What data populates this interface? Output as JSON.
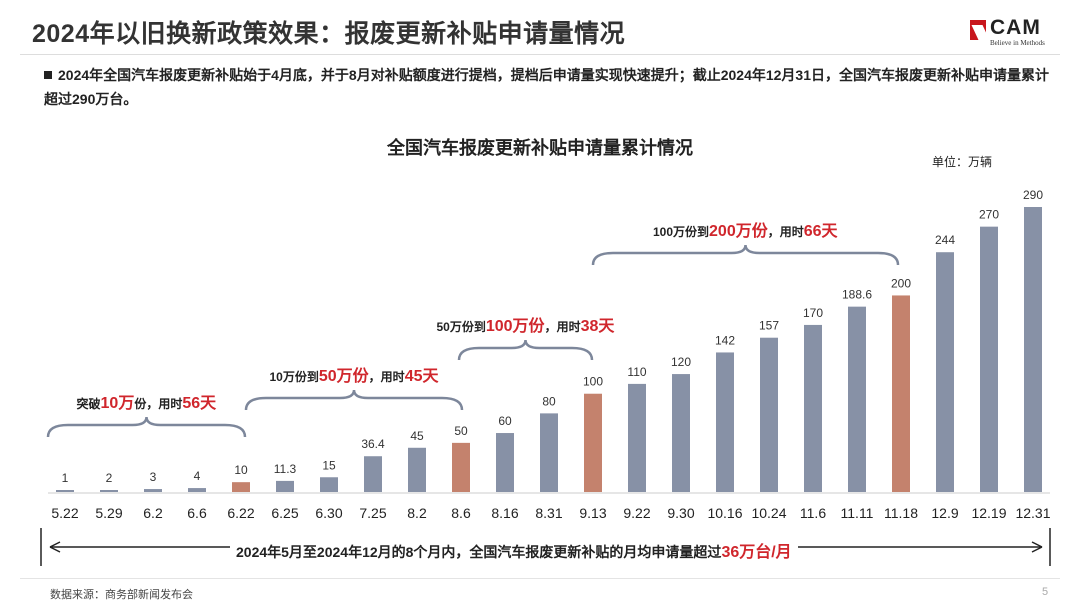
{
  "header": {
    "title": "2024年以旧换新政策效果：报废更新补贴申请量情况",
    "logo_text": "CAM",
    "logo_tagline": "Believe in Methods"
  },
  "bullet": "2024年全国汽车报废更新补贴始于4月底，并于8月对补贴额度进行提档，提档后申请量实现快速提升；截止2024年12月31日，全国汽车报废更新补贴申请量累计超过290万台。",
  "chart_data": {
    "type": "bar",
    "title": "全国汽车报废更新补贴申请量累计情况",
    "unit_label": "单位：万辆",
    "categories": [
      "5.22",
      "5.29",
      "6.2",
      "6.6",
      "6.22",
      "6.25",
      "6.30",
      "7.25",
      "8.2",
      "8.6",
      "8.16",
      "8.31",
      "9.13",
      "9.22",
      "9.30",
      "10.16",
      "10.24",
      "11.6",
      "11.11",
      "11.18",
      "12.9",
      "12.19",
      "12.31"
    ],
    "values": [
      1,
      2,
      3,
      4,
      10,
      11.3,
      15,
      36.4,
      45,
      50,
      60,
      80,
      100,
      110,
      120,
      142,
      157,
      170,
      188.6,
      200,
      244,
      270,
      290
    ],
    "highlighted": [
      "6.22",
      "8.6",
      "9.13",
      "11.18"
    ],
    "ylim": [
      0,
      290
    ],
    "grid": false,
    "colors": {
      "bar": "#8791a6",
      "highlight": "#c4826d",
      "accent": "#d0262c"
    },
    "annotations": [
      {
        "pre": "突破",
        "red1": "10万",
        "mid": "份，用时",
        "red2": "56天",
        "from": "5.22",
        "to": "6.22"
      },
      {
        "pre": "10万份到",
        "red1": "50万份",
        "mid": "，用时",
        "red2": "45天",
        "from": "6.22",
        "to": "8.6"
      },
      {
        "pre": "50万份到",
        "red1": "100万份",
        "mid": "，用时",
        "red2": "38天",
        "from": "8.6",
        "to": "9.13"
      },
      {
        "pre": "100万份到",
        "red1": "200万份",
        "mid": "，用时",
        "red2": "66天",
        "from": "9.13",
        "to": "11.18"
      }
    ]
  },
  "summary": {
    "text": "2024年5月至2024年12月的8个月内，全国汽车报废更新补贴的月均申请量超过",
    "red": "36万台/月"
  },
  "footer": {
    "source": "数据来源：商务部新闻发布会",
    "page": "5"
  }
}
